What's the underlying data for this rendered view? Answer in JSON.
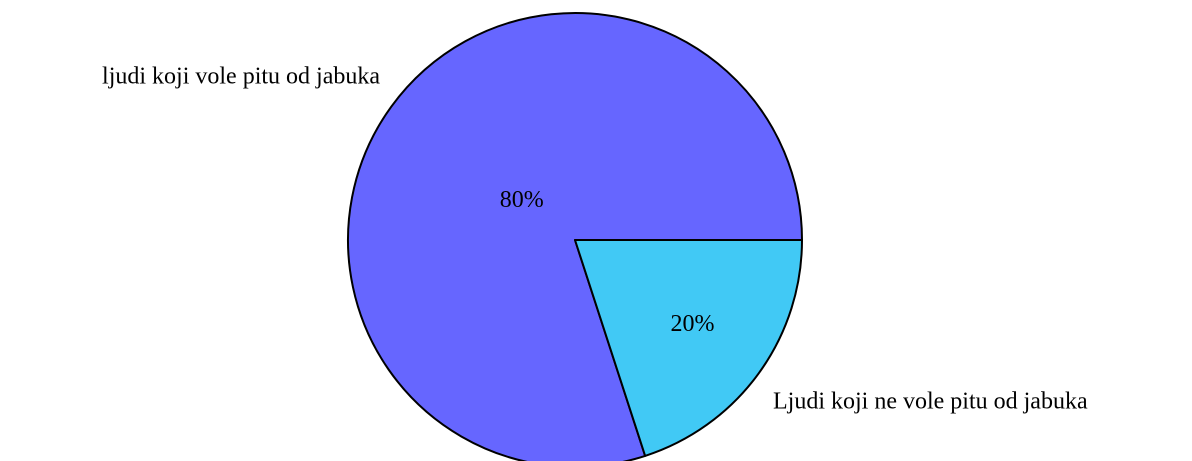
{
  "chart_data": {
    "type": "pie",
    "categories": [
      "ljudi koji vole pitu od jabuka",
      "Ljudi koji ne vole pitu od jabuka"
    ],
    "values": [
      80,
      20
    ],
    "value_labels": [
      "80%",
      "20%"
    ],
    "colors": [
      "#6666ff",
      "#41c9f5"
    ]
  }
}
